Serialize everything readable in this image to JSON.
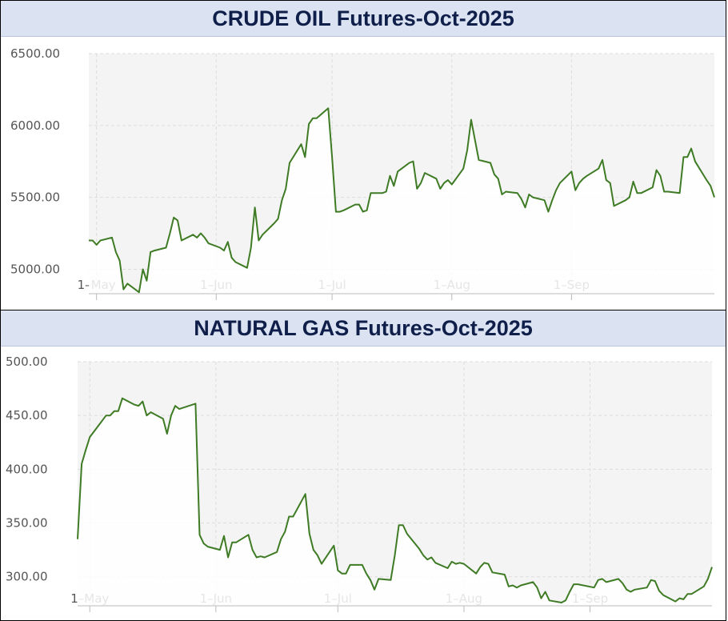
{
  "colors": {
    "line": "#3e7b24",
    "plot_bg": "#f4f4f4",
    "title_bg": "#dbe3f3",
    "title_text": "#0f1f4a"
  },
  "chart_data": [
    {
      "type": "line",
      "title": "CRUDE OIL Futures-Oct-2025",
      "xlabel": "",
      "ylabel": "",
      "x_ticks": [
        {
          "date": "2025-05-01",
          "label": "1–May"
        },
        {
          "date": "2025-06-01",
          "label": "1–Jun"
        },
        {
          "date": "2025-07-01",
          "label": "1–Jul"
        },
        {
          "date": "2025-08-01",
          "label": "1–Aug"
        },
        {
          "date": "2025-09-01",
          "label": "1–Sep"
        }
      ],
      "y_ticks": [
        5000,
        5500,
        6000,
        6500
      ],
      "y_tick_labels": [
        "5000.00",
        "5500.00",
        "6000.00",
        "6500.00"
      ],
      "ylim": [
        4830,
        6500
      ],
      "xlim": [
        "2025-04-29",
        "2025-09-30"
      ],
      "grid": true,
      "series": [
        {
          "points": [
            [
              "2025-04-29",
              5200
            ],
            [
              "2025-04-30",
              5200
            ],
            [
              "2025-05-01",
              5170
            ],
            [
              "2025-05-02",
              5200
            ],
            [
              "2025-05-05",
              5220
            ],
            [
              "2025-05-06",
              5120
            ],
            [
              "2025-05-07",
              5060
            ],
            [
              "2025-05-08",
              4860
            ],
            [
              "2025-05-09",
              4900
            ],
            [
              "2025-05-12",
              4840
            ],
            [
              "2025-05-13",
              5000
            ],
            [
              "2025-05-14",
              4920
            ],
            [
              "2025-05-15",
              5120
            ],
            [
              "2025-05-16",
              5130
            ],
            [
              "2025-05-19",
              5150
            ],
            [
              "2025-05-20",
              5250
            ],
            [
              "2025-05-21",
              5360
            ],
            [
              "2025-05-22",
              5340
            ],
            [
              "2025-05-23",
              5200
            ],
            [
              "2025-05-26",
              5240
            ],
            [
              "2025-05-27",
              5220
            ],
            [
              "2025-05-28",
              5250
            ],
            [
              "2025-05-29",
              5220
            ],
            [
              "2025-05-30",
              5180
            ],
            [
              "2025-06-02",
              5150
            ],
            [
              "2025-06-03",
              5130
            ],
            [
              "2025-06-04",
              5190
            ],
            [
              "2025-06-05",
              5080
            ],
            [
              "2025-06-06",
              5050
            ],
            [
              "2025-06-09",
              5010
            ],
            [
              "2025-06-10",
              5150
            ],
            [
              "2025-06-11",
              5430
            ],
            [
              "2025-06-12",
              5200
            ],
            [
              "2025-06-13",
              5240
            ],
            [
              "2025-06-16",
              5320
            ],
            [
              "2025-06-17",
              5350
            ],
            [
              "2025-06-18",
              5480
            ],
            [
              "2025-06-19",
              5560
            ],
            [
              "2025-06-20",
              5740
            ],
            [
              "2025-06-23",
              5870
            ],
            [
              "2025-06-24",
              5780
            ],
            [
              "2025-06-25",
              6010
            ],
            [
              "2025-06-26",
              6050
            ],
            [
              "2025-06-27",
              6050
            ],
            [
              "2025-06-30",
              6120
            ],
            [
              "2025-07-01",
              5780
            ],
            [
              "2025-07-02",
              5400
            ],
            [
              "2025-07-03",
              5400
            ],
            [
              "2025-07-04",
              5410
            ],
            [
              "2025-07-07",
              5450
            ],
            [
              "2025-07-08",
              5450
            ],
            [
              "2025-07-09",
              5400
            ],
            [
              "2025-07-10",
              5410
            ],
            [
              "2025-07-11",
              5530
            ],
            [
              "2025-07-14",
              5530
            ],
            [
              "2025-07-15",
              5540
            ],
            [
              "2025-07-16",
              5650
            ],
            [
              "2025-07-17",
              5580
            ],
            [
              "2025-07-18",
              5680
            ],
            [
              "2025-07-21",
              5740
            ],
            [
              "2025-07-22",
              5750
            ],
            [
              "2025-07-23",
              5560
            ],
            [
              "2025-07-24",
              5600
            ],
            [
              "2025-07-25",
              5670
            ],
            [
              "2025-07-28",
              5630
            ],
            [
              "2025-07-29",
              5560
            ],
            [
              "2025-07-30",
              5600
            ],
            [
              "2025-07-31",
              5620
            ],
            [
              "2025-08-01",
              5590
            ],
            [
              "2025-08-04",
              5700
            ],
            [
              "2025-08-05",
              5830
            ],
            [
              "2025-08-06",
              6040
            ],
            [
              "2025-08-07",
              5900
            ],
            [
              "2025-08-08",
              5760
            ],
            [
              "2025-08-11",
              5740
            ],
            [
              "2025-08-12",
              5660
            ],
            [
              "2025-08-13",
              5630
            ],
            [
              "2025-08-14",
              5520
            ],
            [
              "2025-08-15",
              5540
            ],
            [
              "2025-08-18",
              5530
            ],
            [
              "2025-08-19",
              5490
            ],
            [
              "2025-08-20",
              5430
            ],
            [
              "2025-08-21",
              5520
            ],
            [
              "2025-08-22",
              5500
            ],
            [
              "2025-08-25",
              5480
            ],
            [
              "2025-08-26",
              5400
            ],
            [
              "2025-08-27",
              5480
            ],
            [
              "2025-08-28",
              5550
            ],
            [
              "2025-08-29",
              5600
            ],
            [
              "2025-09-01",
              5680
            ],
            [
              "2025-09-02",
              5550
            ],
            [
              "2025-09-03",
              5600
            ],
            [
              "2025-09-04",
              5630
            ],
            [
              "2025-09-05",
              5650
            ],
            [
              "2025-09-08",
              5700
            ],
            [
              "2025-09-09",
              5760
            ],
            [
              "2025-09-10",
              5620
            ],
            [
              "2025-09-11",
              5600
            ],
            [
              "2025-09-12",
              5440
            ],
            [
              "2025-09-15",
              5480
            ],
            [
              "2025-09-16",
              5500
            ],
            [
              "2025-09-17",
              5610
            ],
            [
              "2025-09-18",
              5530
            ],
            [
              "2025-09-19",
              5530
            ],
            [
              "2025-09-22",
              5570
            ],
            [
              "2025-09-23",
              5690
            ],
            [
              "2025-09-24",
              5650
            ],
            [
              "2025-09-25",
              5540
            ],
            [
              "2025-09-26",
              5540
            ],
            [
              "2025-09-29",
              5530
            ],
            [
              "2025-09-30",
              5780
            ],
            [
              "2025-10-01",
              5780
            ],
            [
              "2025-10-02",
              5840
            ],
            [
              "2025-10-03",
              5750
            ],
            [
              "2025-10-06",
              5620
            ],
            [
              "2025-10-07",
              5580
            ],
            [
              "2025-10-08",
              5500
            ]
          ]
        }
      ]
    },
    {
      "type": "line",
      "title": "NATURAL GAS Futures-Oct-2025",
      "xlabel": "",
      "ylabel": "",
      "x_ticks": [
        {
          "date": "2025-05-01",
          "label": "1–May"
        },
        {
          "date": "2025-06-01",
          "label": "1–Jun"
        },
        {
          "date": "2025-07-01",
          "label": "1–Jul"
        },
        {
          "date": "2025-08-01",
          "label": "1–Aug"
        },
        {
          "date": "2025-09-01",
          "label": "1–Sep"
        }
      ],
      "y_ticks": [
        300,
        350,
        400,
        450,
        500
      ],
      "y_tick_labels": [
        "300.00",
        "350.00",
        "400.00",
        "450.00",
        "500.00"
      ],
      "ylim": [
        273,
        500
      ],
      "xlim": [
        "2025-04-28",
        "2025-09-30"
      ],
      "grid": true,
      "series": [
        {
          "points": [
            [
              "2025-04-28",
              335
            ],
            [
              "2025-04-29",
              405
            ],
            [
              "2025-04-30",
              418
            ],
            [
              "2025-05-01",
              430
            ],
            [
              "2025-05-05",
              450
            ],
            [
              "2025-05-06",
              450
            ],
            [
              "2025-05-07",
              454
            ],
            [
              "2025-05-08",
              454
            ],
            [
              "2025-05-09",
              466
            ],
            [
              "2025-05-12",
              460
            ],
            [
              "2025-05-13",
              459
            ],
            [
              "2025-05-14",
              463
            ],
            [
              "2025-05-15",
              450
            ],
            [
              "2025-05-16",
              453
            ],
            [
              "2025-05-19",
              447
            ],
            [
              "2025-05-20",
              433
            ],
            [
              "2025-05-21",
              450
            ],
            [
              "2025-05-22",
              459
            ],
            [
              "2025-05-23",
              456
            ],
            [
              "2025-05-27",
              461
            ],
            [
              "2025-05-28",
              339
            ],
            [
              "2025-05-29",
              331
            ],
            [
              "2025-05-30",
              328
            ],
            [
              "2025-06-02",
              325
            ],
            [
              "2025-06-03",
              338
            ],
            [
              "2025-06-04",
              318
            ],
            [
              "2025-06-05",
              332
            ],
            [
              "2025-06-06",
              332
            ],
            [
              "2025-06-09",
              339
            ],
            [
              "2025-06-10",
              325
            ],
            [
              "2025-06-11",
              318
            ],
            [
              "2025-06-12",
              319
            ],
            [
              "2025-06-13",
              318
            ],
            [
              "2025-06-16",
              323
            ],
            [
              "2025-06-17",
              335
            ],
            [
              "2025-06-18",
              342
            ],
            [
              "2025-06-19",
              356
            ],
            [
              "2025-06-20",
              356
            ],
            [
              "2025-06-23",
              377
            ],
            [
              "2025-06-24",
              340
            ],
            [
              "2025-06-25",
              325
            ],
            [
              "2025-06-26",
              320
            ],
            [
              "2025-06-27",
              312
            ],
            [
              "2025-06-30",
              329
            ],
            [
              "2025-07-01",
              306
            ],
            [
              "2025-07-02",
              303
            ],
            [
              "2025-07-03",
              303
            ],
            [
              "2025-07-04",
              311
            ],
            [
              "2025-07-07",
              311
            ],
            [
              "2025-07-08",
              303
            ],
            [
              "2025-07-09",
              297
            ],
            [
              "2025-07-10",
              288
            ],
            [
              "2025-07-11",
              298
            ],
            [
              "2025-07-14",
              297
            ],
            [
              "2025-07-15",
              320
            ],
            [
              "2025-07-16",
              348
            ],
            [
              "2025-07-17",
              348
            ],
            [
              "2025-07-18",
              340
            ],
            [
              "2025-07-21",
              326
            ],
            [
              "2025-07-22",
              320
            ],
            [
              "2025-07-23",
              316
            ],
            [
              "2025-07-24",
              318
            ],
            [
              "2025-07-25",
              313
            ],
            [
              "2025-07-28",
              308
            ],
            [
              "2025-07-29",
              314
            ],
            [
              "2025-07-30",
              312
            ],
            [
              "2025-07-31",
              313
            ],
            [
              "2025-08-01",
              312
            ],
            [
              "2025-08-04",
              303
            ],
            [
              "2025-08-05",
              309
            ],
            [
              "2025-08-06",
              313
            ],
            [
              "2025-08-07",
              312
            ],
            [
              "2025-08-08",
              304
            ],
            [
              "2025-08-11",
              302
            ],
            [
              "2025-08-12",
              291
            ],
            [
              "2025-08-13",
              292
            ],
            [
              "2025-08-14",
              290
            ],
            [
              "2025-08-15",
              292
            ],
            [
              "2025-08-18",
              295
            ],
            [
              "2025-08-19",
              290
            ],
            [
              "2025-08-20",
              280
            ],
            [
              "2025-08-21",
              286
            ],
            [
              "2025-08-22",
              278
            ],
            [
              "2025-08-25",
              276
            ],
            [
              "2025-08-26",
              278
            ],
            [
              "2025-08-27",
              286
            ],
            [
              "2025-08-28",
              293
            ],
            [
              "2025-08-29",
              293
            ],
            [
              "2025-09-02",
              290
            ],
            [
              "2025-09-03",
              297
            ],
            [
              "2025-09-04",
              298
            ],
            [
              "2025-09-05",
              295
            ],
            [
              "2025-09-08",
              298
            ],
            [
              "2025-09-09",
              294
            ],
            [
              "2025-09-10",
              288
            ],
            [
              "2025-09-11",
              286
            ],
            [
              "2025-09-12",
              288
            ],
            [
              "2025-09-15",
              290
            ],
            [
              "2025-09-16",
              297
            ],
            [
              "2025-09-17",
              296
            ],
            [
              "2025-09-18",
              287
            ],
            [
              "2025-09-19",
              283
            ],
            [
              "2025-09-22",
              277
            ],
            [
              "2025-09-23",
              280
            ],
            [
              "2025-09-24",
              279
            ],
            [
              "2025-09-25",
              284
            ],
            [
              "2025-09-26",
              284
            ],
            [
              "2025-09-29",
              291
            ],
            [
              "2025-09-30",
              298
            ],
            [
              "2025-10-01",
              309
            ]
          ]
        }
      ]
    }
  ]
}
